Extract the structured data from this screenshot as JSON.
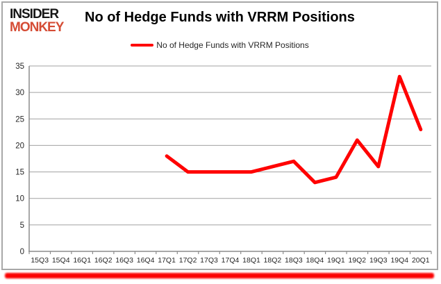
{
  "branding": {
    "logo_line1": "INSIDER",
    "logo_line2": "MONKEY"
  },
  "header": {
    "title": "No of Hedge Funds with VRRM Positions"
  },
  "legend": {
    "label": "No of Hedge Funds with VRRM Positions",
    "swatch_color": "#ff0000"
  },
  "colors": {
    "line": "#ff0000",
    "gridline": "#a0a0a0",
    "axis": "#8c8c8c",
    "tick_text": "#262626",
    "logo_primary": "#161616",
    "logo_accent": "#d54c35",
    "bottom_bar": "#fb0000",
    "card_border": "#a8a8a8"
  },
  "chart_data": {
    "type": "line",
    "title": "No of Hedge Funds with VRRM Positions",
    "categories": [
      "15Q3",
      "15Q4",
      "16Q1",
      "16Q2",
      "16Q3",
      "16Q4",
      "17Q1",
      "17Q2",
      "17Q3",
      "17Q4",
      "18Q1",
      "18Q2",
      "18Q3",
      "18Q4",
      "19Q1",
      "19Q2",
      "19Q3",
      "19Q4",
      "20Q1"
    ],
    "series": [
      {
        "name": "No of Hedge Funds with VRRM Positions",
        "color": "#ff0000",
        "values": [
          null,
          null,
          null,
          null,
          null,
          null,
          18,
          15,
          15,
          15,
          15,
          16,
          17,
          13,
          14,
          21,
          16,
          33,
          23
        ]
      }
    ],
    "xlabel": "",
    "ylabel": "",
    "ylim": [
      0,
      35
    ],
    "y_ticks": [
      0,
      5,
      10,
      15,
      20,
      25,
      30,
      35
    ],
    "grid": "horizontal",
    "legend_position": "top"
  }
}
